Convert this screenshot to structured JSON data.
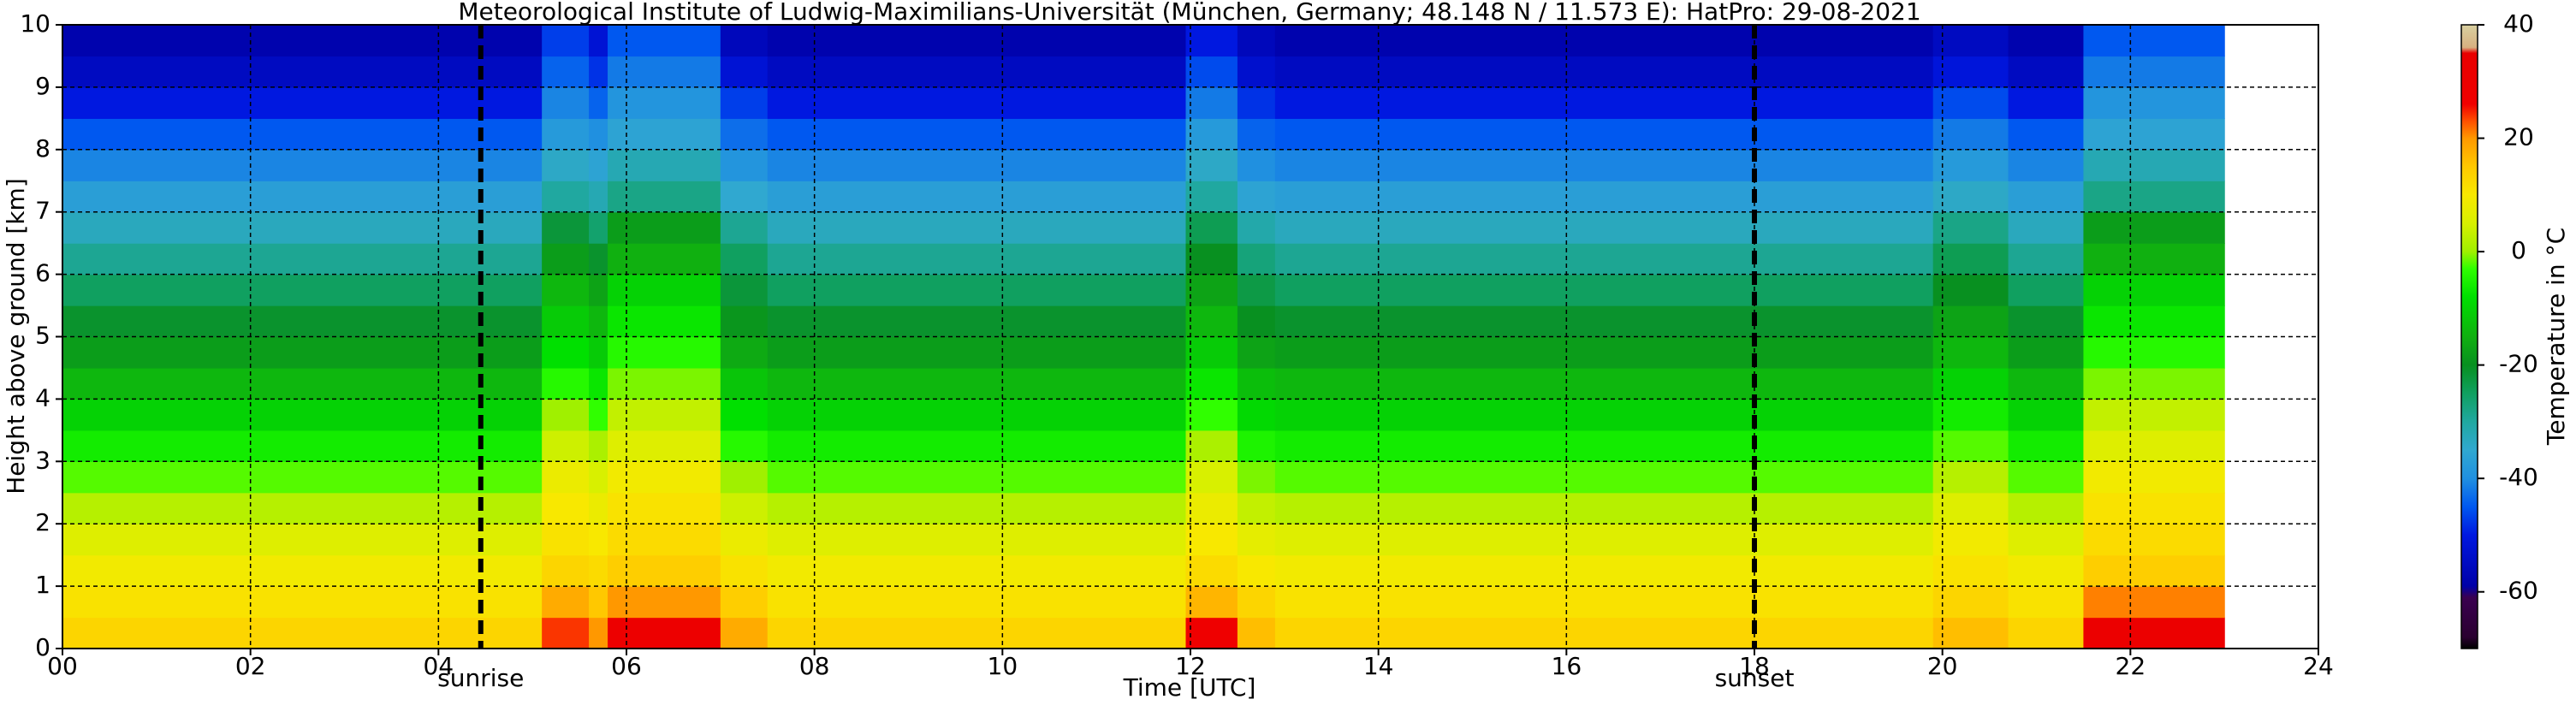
{
  "chart_data": {
    "type": "heatmap",
    "title": "Meteorological Institute of Ludwig-Maximilians-Universität (München, Germany; 48.148 N / 11.573 E):    HatPro: 29-08-2021",
    "xlabel": "Time [UTC]",
    "ylabel": "Height above ground [km]",
    "colorbar_label": "Temperature in °C",
    "x": [
      0,
      5.1,
      5.6,
      5.8,
      7.0,
      7.5,
      11.95,
      12.5,
      12.9,
      19.9,
      20.7,
      21.5,
      23.0
    ],
    "y": [
      0,
      0.5,
      1,
      1.5,
      2,
      2.5,
      3,
      3.5,
      4,
      4.5,
      5,
      5.5,
      6,
      6.5,
      7,
      7.5,
      8,
      8.5,
      9,
      9.5,
      10
    ],
    "values": [
      [
        13,
        11,
        9,
        6,
        2,
        -2,
        -6,
        -10,
        -14,
        -18,
        -21,
        -25,
        -29,
        -33,
        -37,
        -41,
        -45,
        -50,
        -55,
        -58
      ],
      [
        24,
        18,
        13,
        11,
        10,
        8,
        4,
        0,
        -4,
        -8,
        -11,
        -14,
        -18,
        -22,
        -30,
        -34,
        -38,
        -41,
        -44,
        -47
      ],
      [
        20,
        15,
        12,
        10,
        8,
        5,
        1,
        -3,
        -7,
        -11,
        -14,
        -17,
        -21,
        -26,
        -32,
        -36,
        -40,
        -44,
        -48,
        -52
      ],
      [
        29,
        20,
        14,
        12,
        11,
        9,
        6,
        3,
        -1,
        -4,
        -7,
        -10,
        -15,
        -18,
        -28,
        -32,
        -36,
        -39,
        -42,
        -45
      ],
      [
        18,
        14,
        11,
        8,
        4,
        0,
        -4,
        -8,
        -12,
        -16,
        -19,
        -22,
        -25,
        -29,
        -35,
        -39,
        -43,
        -47,
        -52,
        -56
      ],
      [
        13,
        11,
        9,
        6,
        2,
        -2,
        -6,
        -10,
        -14,
        -18,
        -21,
        -25,
        -29,
        -33,
        -37,
        -41,
        -45,
        -50,
        -55,
        -58
      ],
      [
        27,
        17,
        12,
        10,
        8,
        5,
        1,
        -3,
        -7,
        -11,
        -14,
        -17,
        -20,
        -24,
        -30,
        -34,
        -38,
        -42,
        -46,
        -50
      ],
      [
        16,
        13,
        10,
        7,
        3,
        -1,
        -5,
        -9,
        -13,
        -17,
        -20,
        -23,
        -27,
        -31,
        -36,
        -40,
        -44,
        -48,
        -53,
        -56
      ],
      [
        13,
        11,
        9,
        6,
        2,
        -2,
        -6,
        -10,
        -14,
        -18,
        -21,
        -25,
        -29,
        -33,
        -37,
        -41,
        -45,
        -50,
        -55,
        -58
      ],
      [
        16,
        13,
        11,
        9,
        6,
        2,
        -2,
        -6,
        -10,
        -14,
        -17,
        -20,
        -24,
        -28,
        -34,
        -38,
        -42,
        -46,
        -51,
        -55
      ],
      [
        13,
        11,
        9,
        6,
        2,
        -2,
        -6,
        -10,
        -14,
        -18,
        -21,
        -25,
        -29,
        -33,
        -37,
        -41,
        -45,
        -50,
        -55,
        -58
      ],
      [
        30,
        21,
        14,
        12,
        11,
        9,
        6,
        3,
        -1,
        -4,
        -7,
        -10,
        -15,
        -18,
        -28,
        -32,
        -36,
        -39,
        -42,
        -45
      ]
    ],
    "xlim": [
      0,
      24
    ],
    "xticks": [
      {
        "value": 0,
        "label": "00"
      },
      {
        "value": 2,
        "label": "02"
      },
      {
        "value": 4,
        "label": "04"
      },
      {
        "value": 6,
        "label": "06"
      },
      {
        "value": 8,
        "label": "08"
      },
      {
        "value": 10,
        "label": "10"
      },
      {
        "value": 12,
        "label": "12"
      },
      {
        "value": 14,
        "label": "14"
      },
      {
        "value": 16,
        "label": "16"
      },
      {
        "value": 18,
        "label": "18"
      },
      {
        "value": 20,
        "label": "20"
      },
      {
        "value": 22,
        "label": "22"
      },
      {
        "value": 24,
        "label": "24"
      }
    ],
    "ylim": [
      0,
      10
    ],
    "yticks": [
      0,
      1,
      2,
      3,
      4,
      5,
      6,
      7,
      8,
      9,
      10
    ],
    "grid": true,
    "clim": [
      -70,
      40
    ],
    "cticks": [
      -60,
      -40,
      -20,
      0,
      20,
      40
    ],
    "colorscale": [
      [
        -70,
        "#000000"
      ],
      [
        -68,
        "#2a0030"
      ],
      [
        -61,
        "#3a0050"
      ],
      [
        -59,
        "#0000a8"
      ],
      [
        -50,
        "#0018e0"
      ],
      [
        -45,
        "#0058f0"
      ],
      [
        -40,
        "#2090e0"
      ],
      [
        -35,
        "#30a8d0"
      ],
      [
        -30,
        "#20a8a0"
      ],
      [
        -25,
        "#10a060"
      ],
      [
        -20,
        "#089020"
      ],
      [
        -15,
        "#10b010"
      ],
      [
        -8,
        "#00e000"
      ],
      [
        -3,
        "#30ff00"
      ],
      [
        0,
        "#a0f000"
      ],
      [
        5,
        "#d8f000"
      ],
      [
        10,
        "#f8e800"
      ],
      [
        15,
        "#ffc800"
      ],
      [
        20,
        "#ff9800"
      ],
      [
        23,
        "#ff5000"
      ],
      [
        26,
        "#f00000"
      ],
      [
        35,
        "#e80000"
      ],
      [
        36,
        "#d8b080"
      ],
      [
        40,
        "#d8d0a0"
      ]
    ],
    "annotations": [
      {
        "text": "sunrise",
        "x": 4.45
      },
      {
        "text": "sunset",
        "x": 18.0
      }
    ]
  }
}
